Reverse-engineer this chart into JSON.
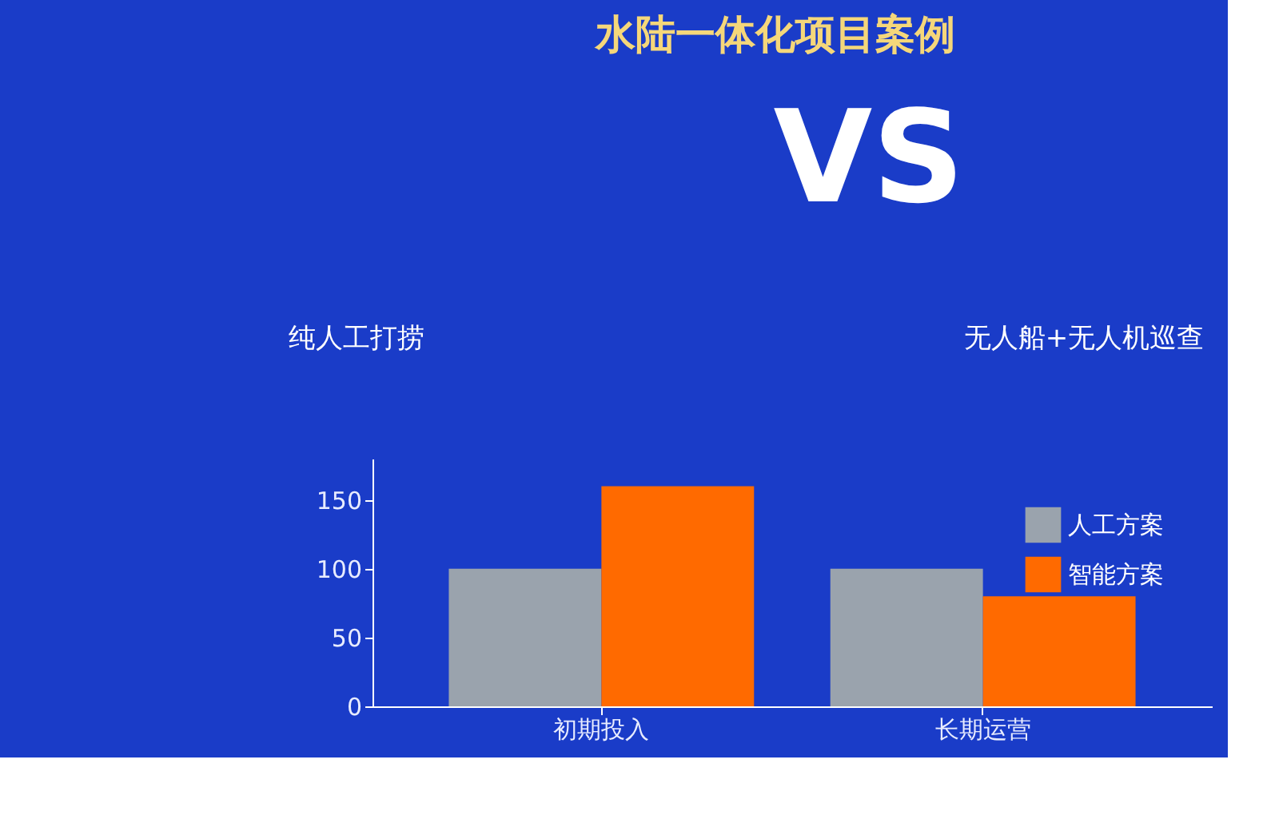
{
  "chart_data": {
    "type": "bar",
    "title": "水陆一体化项目案例",
    "annotations": [
      "VS",
      "纯人工打捞",
      "无人船+无人机巡查"
    ],
    "categories": [
      "初期投入",
      "长期运营"
    ],
    "series": [
      {
        "name": "人工方案",
        "color": "#9aa3ad",
        "values": [
          100,
          100
        ]
      },
      {
        "name": "智能方案",
        "color": "#ff6a00",
        "values": [
          160,
          80
        ]
      }
    ],
    "ylim": [
      0,
      180
    ],
    "yticks": [
      0,
      50,
      100,
      150
    ],
    "grid": false,
    "legend": "top right"
  }
}
